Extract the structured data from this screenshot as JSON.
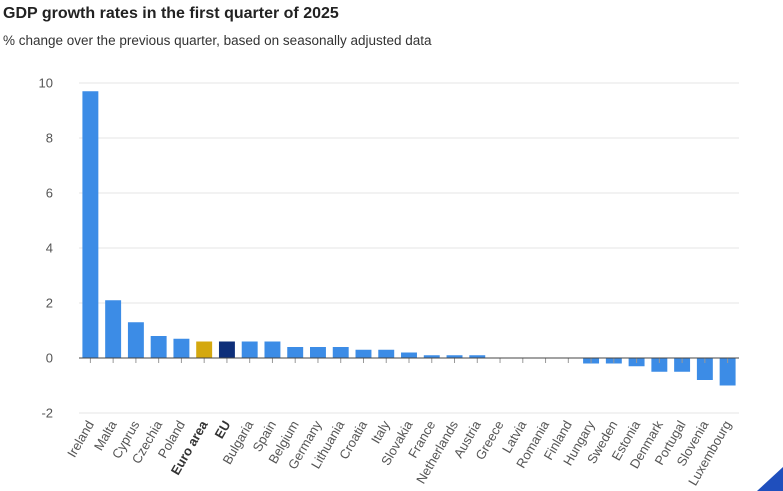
{
  "header": {
    "title": "GDP growth rates in the first quarter of 2025",
    "subtitle": "% change over the previous quarter, based on seasonally adjusted data"
  },
  "colors": {
    "bar": "#3c8ce6",
    "euro_area": "#d4a80f",
    "eu": "#0e2f7a",
    "grid": "#e6e6e6",
    "axis_text": "#555555",
    "logo": "#1f4fbd"
  },
  "chart_data": {
    "type": "bar",
    "title": "GDP growth rates in the first quarter of 2025",
    "subtitle": "% change over the previous quarter, based on seasonally adjusted data",
    "xlabel": "",
    "ylabel": "",
    "ylim": [
      -2,
      10
    ],
    "yticks": [
      "-2",
      "0",
      "2",
      "4",
      "6",
      "8",
      "10"
    ],
    "grid": true,
    "categories": [
      "Ireland",
      "Malta",
      "Cyprus",
      "Czechia",
      "Poland",
      "Euro area",
      "EU",
      "Bulgaria",
      "Spain",
      "Belgium",
      "Germany",
      "Lithuania",
      "Croatia",
      "Italy",
      "Slovakia",
      "France",
      "Netherlands",
      "Austria",
      "Greece",
      "Latvia",
      "Romania",
      "Finland",
      "Hungary",
      "Sweden",
      "Estonia",
      "Denmark",
      "Portugal",
      "Slovenia",
      "Luxembourg"
    ],
    "values": [
      9.7,
      2.1,
      1.3,
      0.8,
      0.7,
      0.6,
      0.6,
      0.6,
      0.6,
      0.4,
      0.4,
      0.4,
      0.3,
      0.3,
      0.2,
      0.1,
      0.1,
      0.1,
      0.0,
      0.0,
      0.0,
      0.0,
      -0.2,
      -0.2,
      -0.3,
      -0.5,
      -0.5,
      -0.8,
      -1.0
    ],
    "highlighted": [
      "Euro area",
      "EU"
    ]
  }
}
